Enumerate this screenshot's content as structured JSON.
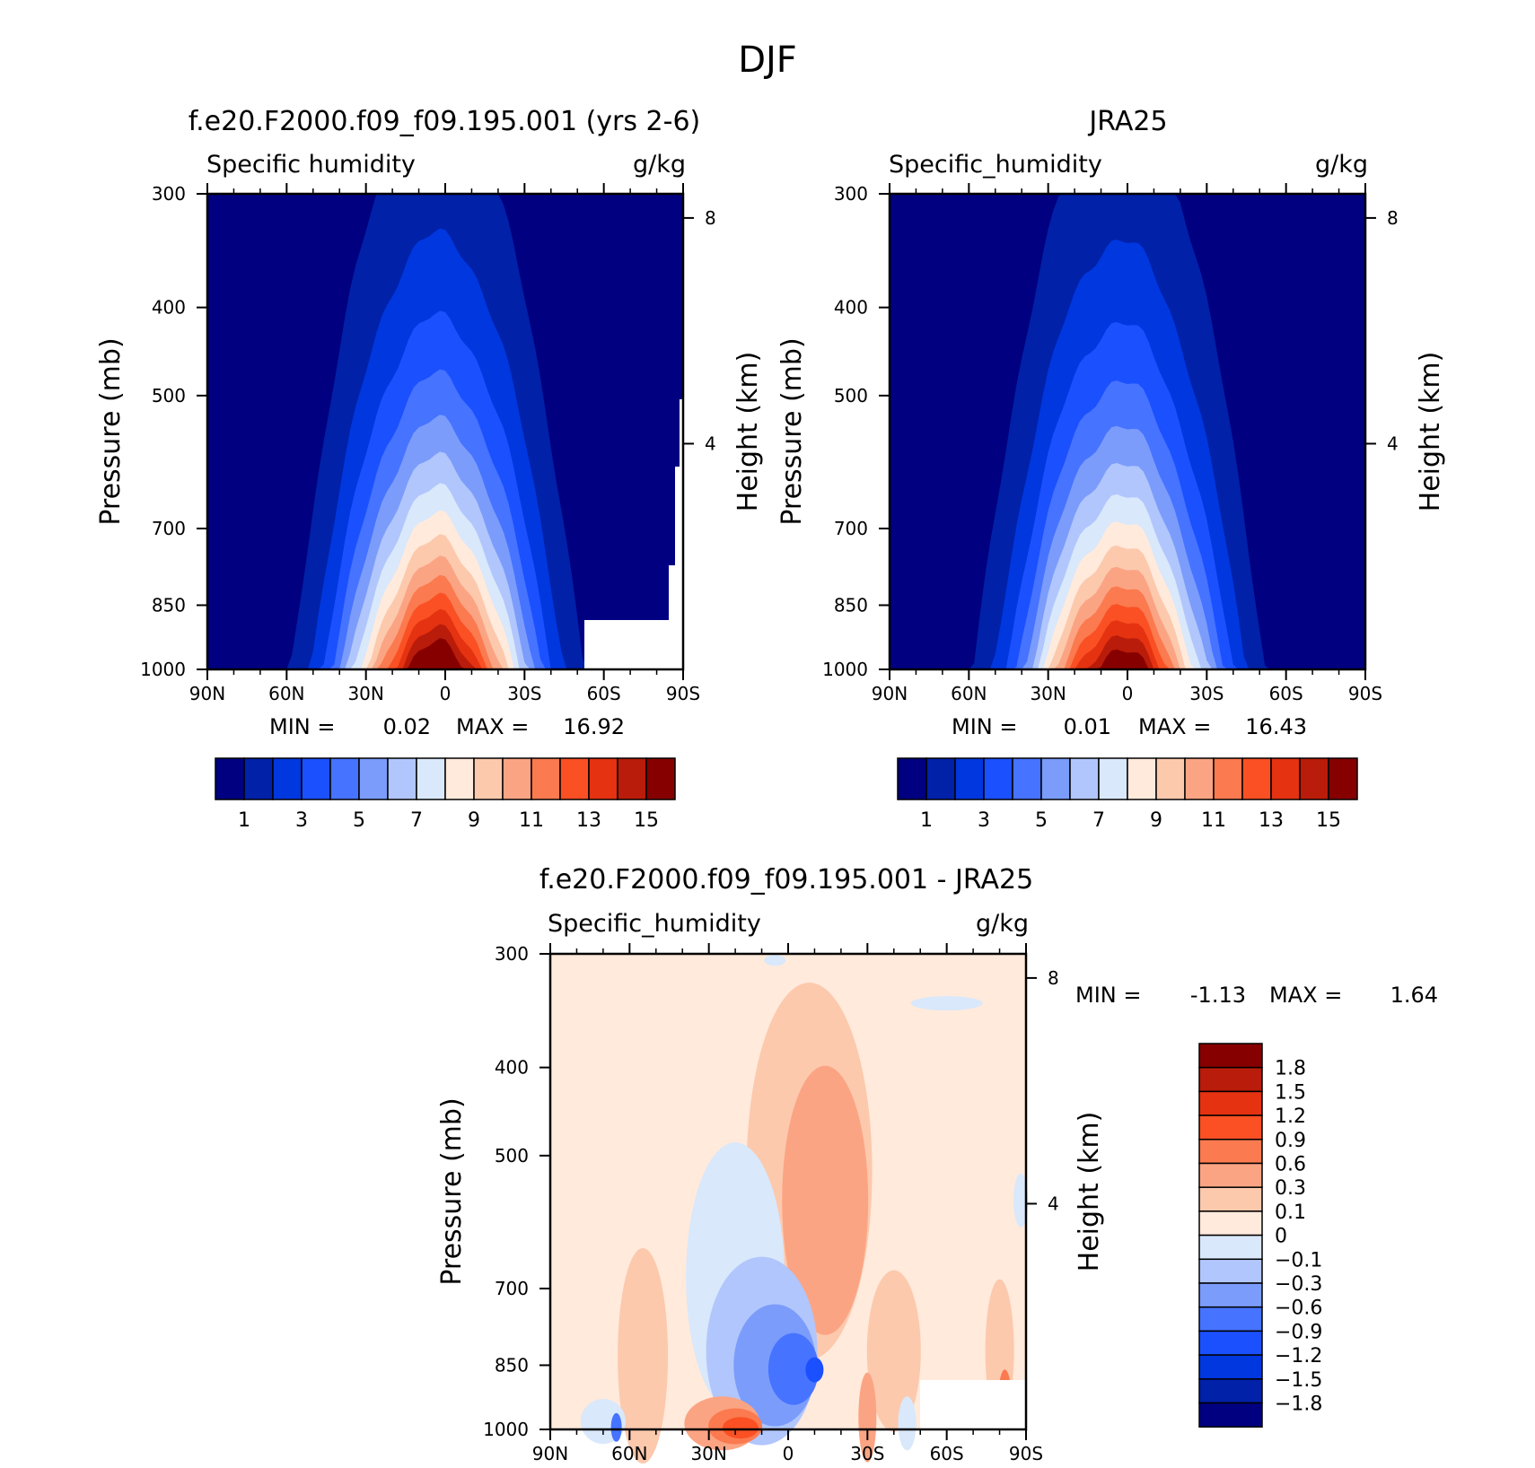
{
  "page_title": "DJF",
  "cmap_abs": [
    "#000080",
    "#0021a8",
    "#0037df",
    "#1b50ff",
    "#4673ff",
    "#7b9cfb",
    "#b1c6fc",
    "#d9e8fb",
    "#ffeadc",
    "#fcc9ad",
    "#fba483",
    "#fb7a4f",
    "#fa5024",
    "#e53211",
    "#b91c0a",
    "#860000"
  ],
  "cmap_diff": [
    "#000080",
    "#0021a8",
    "#0037df",
    "#1b50ff",
    "#4673ff",
    "#7b9cfb",
    "#b1c6fc",
    "#d9e8fb",
    "#ffeadc",
    "#fcc9ad",
    "#fba483",
    "#fb7a4f",
    "#fa5024",
    "#e53211",
    "#b91c0a",
    "#860000"
  ],
  "chart_data": [
    {
      "type": "contour",
      "id": "model",
      "title": "f.e20.F2000.f09_f09.195.001 (yrs 2-6)",
      "left_label": "Specific humidity",
      "right_label": "g/kg",
      "ylabel": "Pressure (mb)",
      "y2label": "Height (km)",
      "x_ticks": [
        "90N",
        "60N",
        "30N",
        "0",
        "30S",
        "60S",
        "90S"
      ],
      "y_ticks": [
        "300",
        "400",
        "500",
        "700",
        "850",
        "1000"
      ],
      "y2_ticks": [
        "8",
        "4"
      ],
      "min_label": "MIN =",
      "min_value": "0.02",
      "max_label": "MAX =",
      "max_value": "16.92",
      "colorbar_labels": [
        "1",
        "3",
        "5",
        "7",
        "9",
        "11",
        "13",
        "15"
      ],
      "peak": 16.92
    },
    {
      "type": "contour",
      "id": "obs",
      "title": "JRA25",
      "left_label": "Specific_humidity",
      "right_label": "g/kg",
      "ylabel": "Pressure (mb)",
      "y2label": "Height (km)",
      "x_ticks": [
        "90N",
        "60N",
        "30N",
        "0",
        "30S",
        "60S",
        "90S"
      ],
      "y_ticks": [
        "300",
        "400",
        "500",
        "700",
        "850",
        "1000"
      ],
      "y2_ticks": [
        "8",
        "4"
      ],
      "min_label": "MIN =",
      "min_value": "0.01",
      "max_label": "MAX =",
      "max_value": "16.43",
      "colorbar_labels": [
        "1",
        "3",
        "5",
        "7",
        "9",
        "11",
        "13",
        "15"
      ],
      "peak": 16.43
    },
    {
      "type": "contour",
      "id": "diff",
      "title": "f.e20.F2000.f09_f09.195.001 - JRA25",
      "left_label": "Specific_humidity",
      "right_label": "g/kg",
      "ylabel": "Pressure (mb)",
      "y2label": "Height (km)",
      "x_ticks": [
        "90N",
        "60N",
        "30N",
        "0",
        "30S",
        "60S",
        "90S"
      ],
      "y_ticks": [
        "300",
        "400",
        "500",
        "700",
        "850",
        "1000"
      ],
      "y2_ticks": [
        "8",
        "4"
      ],
      "min_label": "MIN =",
      "min_value": "-1.13",
      "max_label": "MAX =",
      "max_value": "1.64",
      "colorbar_labels": [
        "1.8",
        "1.5",
        "1.2",
        "0.9",
        "0.6",
        "0.3",
        "0.1",
        "0",
        "-0.1",
        "-0.3",
        "-0.6",
        "-0.9",
        "-1.2",
        "-1.5",
        "-1.8"
      ]
    }
  ]
}
